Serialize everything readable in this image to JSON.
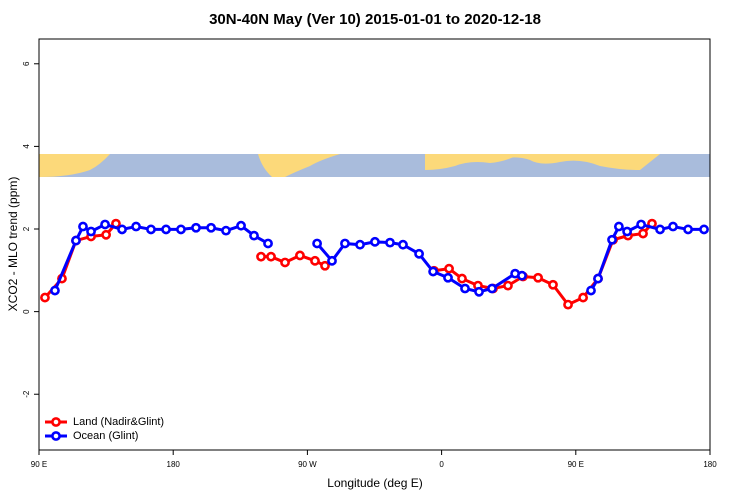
{
  "chart_data": {
    "type": "line",
    "title": "30N-40N May (Ver 10)   2015-01-01 to 2020-12-18",
    "x_label": "Longitude (deg E)",
    "y_label": "XCO2 - MLO trend (ppm)",
    "xlim": [
      90,
      540
    ],
    "ylim": [
      -3.35,
      6.6
    ],
    "xticks": [
      {
        "value": 90,
        "label": "90 E"
      },
      180,
      {
        "value": 270,
        "label": "90 W"
      },
      {
        "value": 360,
        "label": "0"
      },
      {
        "value": 450,
        "label": "90 E"
      },
      {
        "value": 540,
        "label": "180"
      }
    ],
    "yticks": [
      -2,
      0,
      2,
      4,
      6
    ],
    "legend": "bottom-left",
    "series": [
      {
        "name": "Land (Nadir&Glint)",
        "color": "#ff0000",
        "x": [
          94,
          105.4,
          114.8,
          124.9,
          135,
          141.6,
          null,
          238.9,
          245.6,
          255,
          265,
          275.1,
          281.8,
          null,
          354.9,
          365,
          373.7,
          384.4,
          394.5,
          404.5,
          414.6,
          424.7,
          434.7,
          444.8,
          454.9,
          464.9,
          475,
          485,
          495.1,
          501.1
        ],
        "values": [
          0.34,
          0.8,
          1.72,
          1.82,
          1.86,
          2.13,
          null,
          1.33,
          1.33,
          1.19,
          1.36,
          1.23,
          1.11,
          null,
          0.99,
          1.04,
          0.8,
          0.63,
          0.56,
          0.63,
          0.85,
          0.82,
          0.65,
          0.17,
          0.34,
          0.8,
          1.74,
          1.84,
          1.89,
          2.13
        ]
      },
      {
        "name": "Ocean (Glint)",
        "color": "#0000ff",
        "x": [
          100.7,
          114.8,
          119.5,
          124.9,
          134.3,
          145.7,
          155.1,
          165.1,
          175.2,
          185.2,
          195.3,
          205.4,
          215.4,
          225.5,
          234.2,
          243.6,
          null,
          276.5,
          286.5,
          295.2,
          305.3,
          315.3,
          325.4,
          334.1,
          344.9,
          354.3,
          364.3,
          375.7,
          385.1,
          393.8,
          409.3,
          413.9,
          null,
          460.2,
          464.9,
          474.3,
          478.9,
          484.4,
          493.8,
          506.5,
          515.2,
          525.3,
          536
        ],
        "values": [
          0.51,
          1.72,
          2.06,
          1.94,
          2.11,
          1.99,
          2.06,
          1.99,
          1.99,
          1.99,
          2.03,
          2.03,
          1.96,
          2.08,
          1.84,
          1.65,
          null,
          1.65,
          1.23,
          1.65,
          1.62,
          1.69,
          1.67,
          1.62,
          1.4,
          0.97,
          0.82,
          0.56,
          0.48,
          0.56,
          0.92,
          0.87,
          null,
          0.51,
          0.8,
          1.74,
          2.06,
          1.94,
          2.11,
          1.99,
          2.06,
          1.99,
          1.99
        ]
      }
    ]
  }
}
